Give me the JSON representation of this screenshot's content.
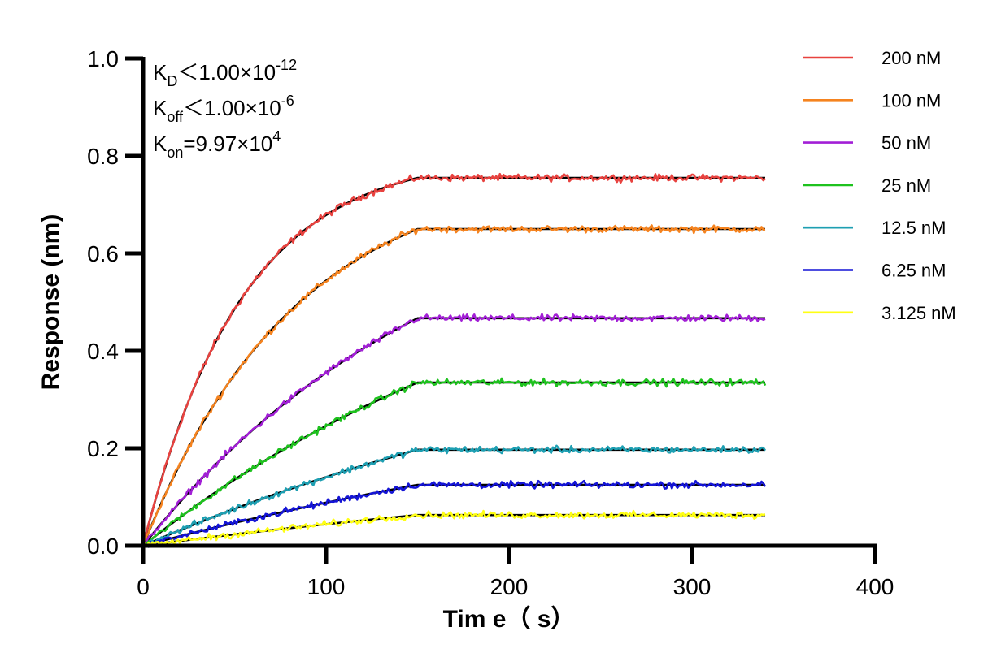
{
  "chart_data": {
    "type": "line",
    "xlabel": "Tim e（ s）",
    "ylabel": "Response (nm)",
    "xlim": [
      0,
      400
    ],
    "ylim": [
      0,
      1.0
    ],
    "xticks": [
      "0",
      "100",
      "200",
      "300",
      "400"
    ],
    "yticks": [
      "0.0",
      "0.2",
      "0.4",
      "0.6",
      "0.8",
      "1.0"
    ],
    "grid": false,
    "legend_position": "top-right",
    "association_end": 150,
    "experiment_end": 340,
    "annotations": {
      "kd": {
        "base": "K",
        "sub": "D",
        "text": "＜1.00×10",
        "sup": "-12"
      },
      "koff": {
        "base": "K",
        "sub": "off",
        "text": "＜1.00×10",
        "sup": "-6"
      },
      "kon": {
        "base": "K",
        "sub": "on",
        "text": "=9.97×10",
        "sup": "4"
      }
    },
    "series": [
      {
        "name": "200 nM",
        "color": "#e8423f",
        "plateau": 0.755,
        "kobs": 0.0185
      },
      {
        "name": "100 nM",
        "color": "#f5831f",
        "plateau": 0.65,
        "kobs": 0.012
      },
      {
        "name": "50 nM",
        "color": "#a21fd6",
        "plateau": 0.467,
        "kobs": 0.006
      },
      {
        "name": "25 nM",
        "color": "#1ec21e",
        "plateau": 0.335,
        "kobs": 0.0042
      },
      {
        "name": "12.5 nM",
        "color": "#1e9fb2",
        "plateau": 0.197,
        "kobs": 0.003
      },
      {
        "name": "6.25 nM",
        "color": "#1414d6",
        "plateau": 0.125,
        "kobs": 0.0025
      },
      {
        "name": "3.125 nM",
        "color": "#ffff14",
        "plateau": 0.063,
        "kobs": 0.0022
      }
    ]
  }
}
